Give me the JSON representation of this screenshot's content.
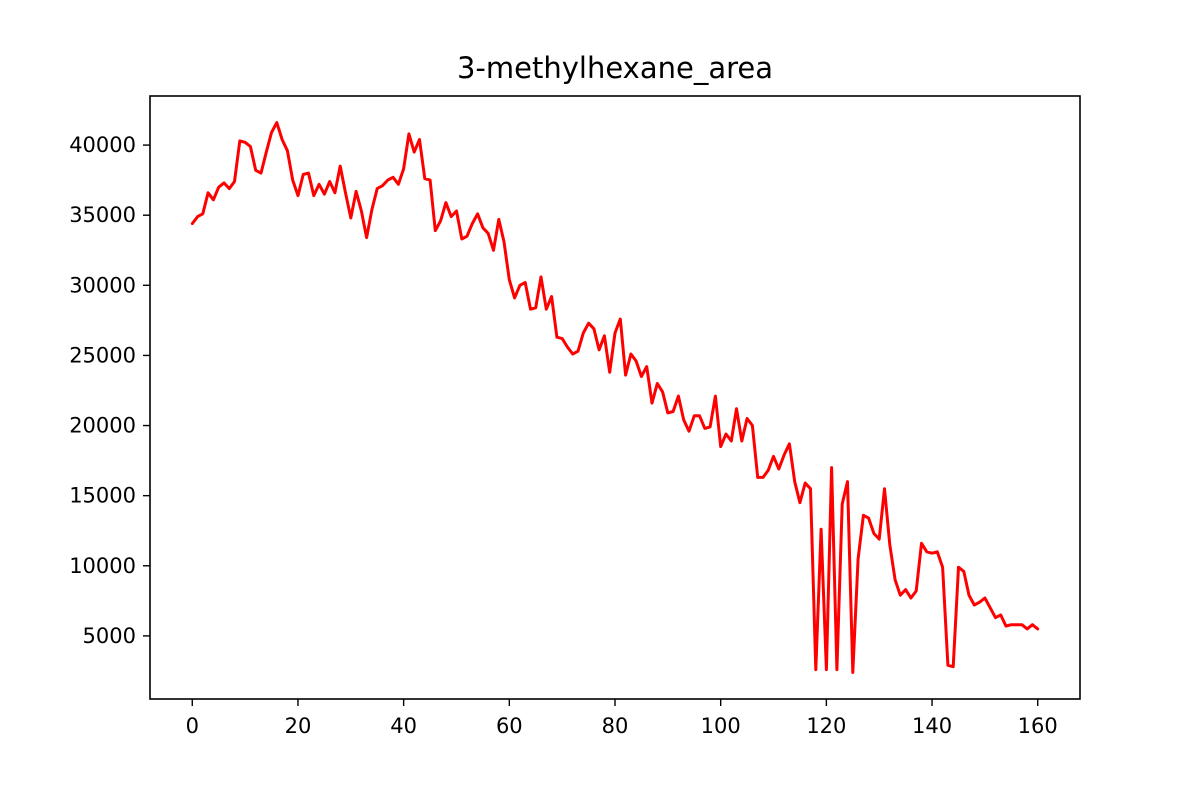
{
  "chart_data": {
    "type": "line",
    "title": "3-methylhexane_area",
    "xlabel": "",
    "ylabel": "",
    "xlim": [
      -8,
      168
    ],
    "ylim": [
      500,
      43500
    ],
    "xticks": [
      0,
      20,
      40,
      60,
      80,
      100,
      120,
      140,
      160
    ],
    "xtick_labels": [
      "0",
      "20",
      "40",
      "60",
      "80",
      "100",
      "120",
      "140",
      "160"
    ],
    "yticks": [
      5000,
      10000,
      15000,
      20000,
      25000,
      30000,
      35000,
      40000
    ],
    "ytick_labels": [
      "5000",
      "10000",
      "15000",
      "20000",
      "25000",
      "30000",
      "35000",
      "40000"
    ],
    "grid": false,
    "series": [
      {
        "color": "#ff0000",
        "x": [
          0,
          1,
          2,
          3,
          4,
          5,
          6,
          7,
          8,
          9,
          10,
          11,
          12,
          13,
          14,
          15,
          16,
          17,
          18,
          19,
          20,
          21,
          22,
          23,
          24,
          25,
          26,
          27,
          28,
          29,
          30,
          31,
          32,
          33,
          34,
          35,
          36,
          37,
          38,
          39,
          40,
          41,
          42,
          43,
          44,
          45,
          46,
          47,
          48,
          49,
          50,
          51,
          52,
          53,
          54,
          55,
          56,
          57,
          58,
          59,
          60,
          61,
          62,
          63,
          64,
          65,
          66,
          67,
          68,
          69,
          70,
          71,
          72,
          73,
          74,
          75,
          76,
          77,
          78,
          79,
          80,
          81,
          82,
          83,
          84,
          85,
          86,
          87,
          88,
          89,
          90,
          91,
          92,
          93,
          94,
          95,
          96,
          97,
          98,
          99,
          100,
          101,
          102,
          103,
          104,
          105,
          106,
          107,
          108,
          109,
          110,
          111,
          112,
          113,
          114,
          115,
          116,
          117,
          118,
          119,
          120,
          121,
          122,
          123,
          124,
          125,
          126,
          127,
          128,
          129,
          130,
          131,
          132,
          133,
          134,
          135,
          136,
          137,
          138,
          139,
          140,
          141,
          142,
          143,
          144,
          145,
          146,
          147,
          148,
          149,
          150,
          151,
          152,
          153,
          154,
          155,
          156,
          157,
          158,
          159,
          160
        ],
        "y": [
          34400,
          34900,
          35100,
          36600,
          36100,
          37000,
          37300,
          36900,
          37400,
          40300,
          40200,
          39900,
          38200,
          38000,
          39500,
          40900,
          41600,
          40400,
          39600,
          37500,
          36400,
          37900,
          38000,
          36400,
          37200,
          36500,
          37400,
          36600,
          38500,
          36600,
          34800,
          36700,
          35300,
          33400,
          35400,
          36900,
          37100,
          37500,
          37700,
          37200,
          38300,
          40800,
          39500,
          40400,
          37600,
          37500,
          33900,
          34600,
          35900,
          34900,
          35300,
          33300,
          33500,
          34400,
          35100,
          34100,
          33700,
          32500,
          34700,
          33100,
          30400,
          29100,
          30000,
          30200,
          28300,
          28400,
          30600,
          28300,
          29200,
          26300,
          26200,
          25600,
          25100,
          25300,
          26600,
          27300,
          26900,
          25400,
          26400,
          23800,
          26600,
          27600,
          23600,
          25100,
          24600,
          23500,
          24200,
          21600,
          23000,
          22400,
          20900,
          21000,
          22100,
          20400,
          19600,
          20700,
          20700,
          19800,
          19900,
          22100,
          18500,
          19400,
          18900,
          21200,
          18900,
          20500,
          20000,
          16300,
          16300,
          16800,
          17800,
          16900,
          17900,
          18700,
          16000,
          14500,
          15900,
          15500,
          2600,
          12600,
          2600,
          17000,
          2600,
          14400,
          16000,
          2400,
          10500,
          13600,
          13400,
          12300,
          11900,
          15500,
          11500,
          9000,
          7900,
          8300,
          7700,
          8200,
          11600,
          11000,
          10900,
          11000,
          9900,
          2900,
          2800,
          9900,
          9600,
          7900,
          7200,
          7400,
          7700,
          7000,
          6300,
          6500,
          5700,
          5800,
          5800,
          5800,
          5500,
          5800,
          5500
        ]
      }
    ]
  }
}
